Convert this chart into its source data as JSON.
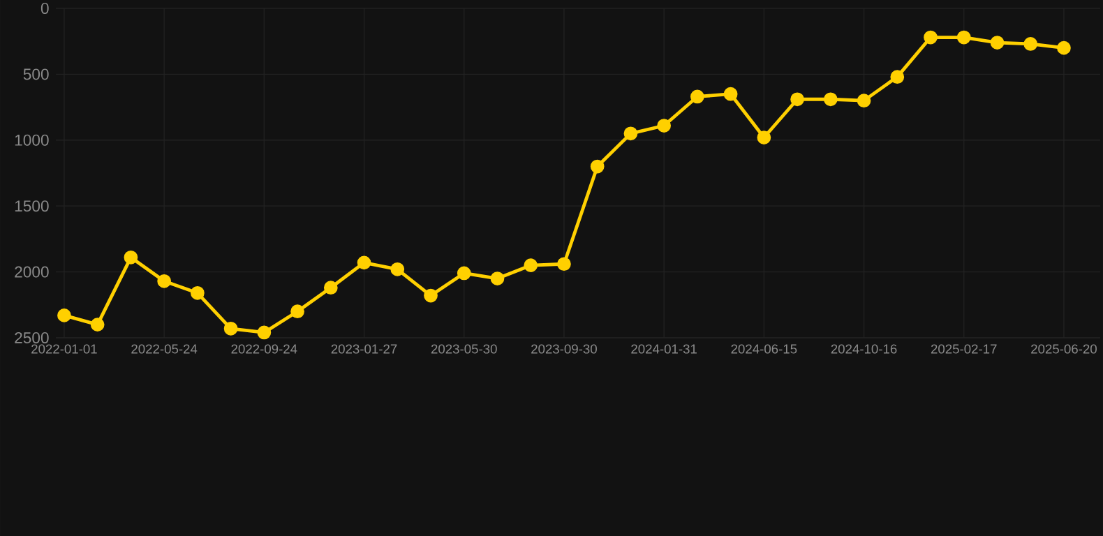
{
  "chart_data": {
    "type": "line",
    "categories": [
      "2022-01-01",
      null,
      null,
      "2022-05-24",
      null,
      null,
      "2022-09-24",
      null,
      null,
      "2023-01-27",
      null,
      null,
      "2023-05-30",
      null,
      null,
      "2023-09-30",
      null,
      null,
      "2024-01-31",
      null,
      null,
      "2024-06-15",
      null,
      null,
      "2024-10-16",
      null,
      null,
      "2025-02-17",
      null,
      null,
      "2025-06-20"
    ],
    "series": [
      {
        "color": "#ffd000",
        "values": [
          2330,
          2400,
          1890,
          2070,
          2160,
          2430,
          2460,
          2300,
          2120,
          1930,
          1980,
          2180,
          2010,
          2050,
          1950,
          1940,
          1200,
          950,
          890,
          670,
          650,
          980,
          690,
          690,
          700,
          520,
          220,
          220,
          260,
          270,
          300
        ]
      }
    ],
    "ylim": [
      2500,
      0
    ],
    "yticks": [
      0,
      500,
      1000,
      1500,
      2000,
      2500
    ],
    "grid": true,
    "marker": "circle",
    "line_style": "solid"
  }
}
